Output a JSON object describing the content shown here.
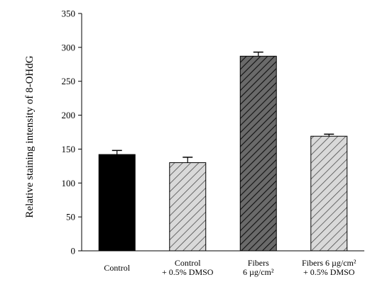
{
  "chart_data": {
    "type": "bar",
    "title": "",
    "xlabel": "",
    "ylabel": "Relative staining intensity of 8-OHdG",
    "ylim": [
      0,
      350
    ],
    "yticks": [
      0,
      50,
      100,
      150,
      200,
      250,
      300,
      350
    ],
    "grid": false,
    "categories": [
      [
        "Control"
      ],
      [
        "Control",
        "+ 0.5% DMSO"
      ],
      [
        "Fibers",
        "6 µg/cm²"
      ],
      [
        "Fibers 6 µg/cm²",
        "+ 0.5% DMSO"
      ]
    ],
    "values": [
      142,
      130,
      287,
      169
    ],
    "errors": [
      6,
      8,
      6,
      3
    ],
    "fills": [
      "solid-black",
      "light-hatch",
      "dark-hatch",
      "light-hatch"
    ]
  }
}
